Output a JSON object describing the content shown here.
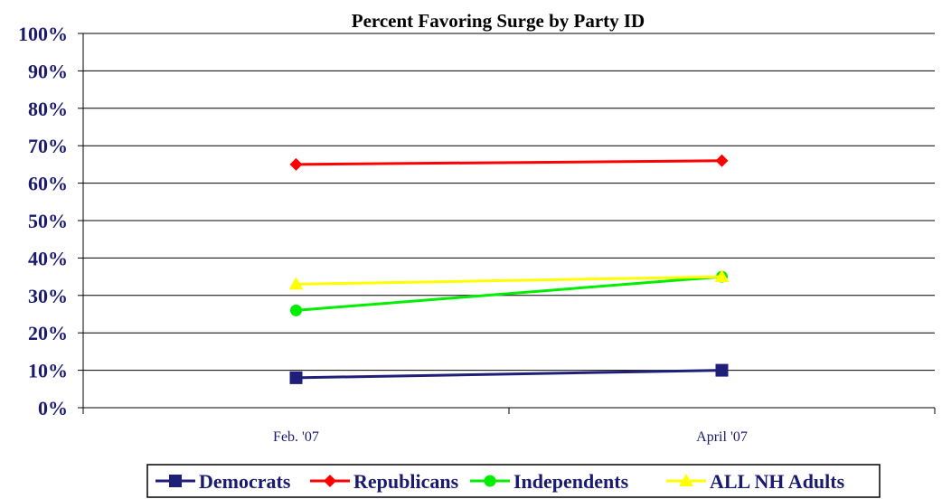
{
  "chart_data": {
    "type": "line",
    "title": "Percent Favoring Surge by Party ID",
    "categories": [
      "Feb. '07",
      "April '07"
    ],
    "ylim": [
      0,
      100
    ],
    "y_ticks": [
      "0%",
      "10%",
      "20%",
      "30%",
      "40%",
      "50%",
      "60%",
      "70%",
      "80%",
      "90%",
      "100%"
    ],
    "y_tick_values": [
      0,
      10,
      20,
      30,
      40,
      50,
      60,
      70,
      80,
      90,
      100
    ],
    "grid": true,
    "legend_position": "bottom",
    "series": [
      {
        "name": "Democrats",
        "values": [
          8,
          10
        ],
        "color": "#1f1f7a",
        "marker": "square"
      },
      {
        "name": "Republicans",
        "values": [
          65,
          66
        ],
        "color": "#ff0000",
        "marker": "diamond"
      },
      {
        "name": "Independents",
        "values": [
          26,
          35
        ],
        "color": "#00ee00",
        "marker": "circle"
      },
      {
        "name": "ALL NH Adults",
        "values": [
          33,
          35
        ],
        "color": "#ffff00",
        "marker": "triangle"
      }
    ]
  }
}
